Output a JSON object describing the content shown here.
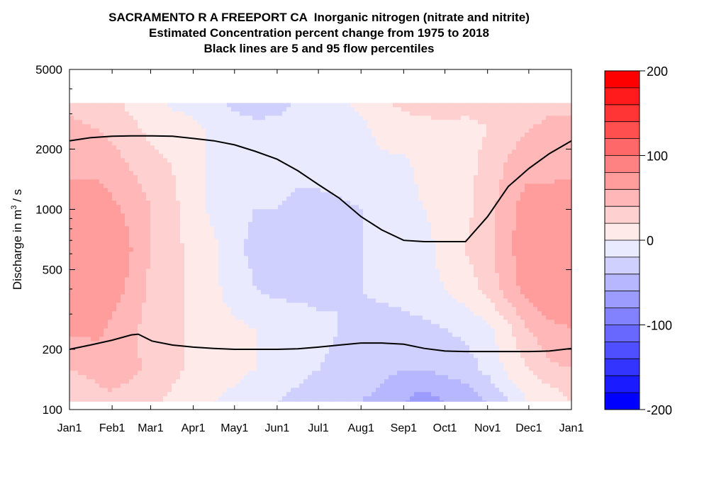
{
  "chart_data": {
    "type": "heatmap",
    "title_lines": [
      "SACRAMENTO R A FREEPORT CA  Inorganic nitrogen (nitrate and nitrite)",
      "Estimated Concentration percent change from 1975 to 2018",
      "Black lines are 5 and 95 flow percentiles"
    ],
    "ylabel": {
      "prefix": "Discharge in m",
      "sup": "3",
      "suffix": " / s"
    },
    "x_ticks": [
      "Jan1",
      "Feb1",
      "Mar1",
      "Apr1",
      "May1",
      "Jun1",
      "Jul1",
      "Aug1",
      "Sep1",
      "Oct1",
      "Nov1",
      "Dec1",
      "Jan1"
    ],
    "y_scale": "log",
    "ylim": [
      100,
      5000
    ],
    "y_ticks": [
      100,
      200,
      500,
      1000,
      2000,
      5000
    ],
    "y_tick_labels": [
      "100",
      "200",
      "500",
      "1000",
      "2000",
      "5000"
    ],
    "contour_data_range": [
      110,
      3400
    ],
    "colorbar": {
      "range": [
        -200,
        200
      ],
      "tick_values": [
        200,
        100,
        0,
        -100,
        -200
      ],
      "tick_labels": [
        "200",
        "100",
        "0",
        "-100",
        "-200"
      ],
      "colors": [
        "#ff0000",
        "#ff1b1b",
        "#ff3434",
        "#ff4f4f",
        "#ff6868",
        "#ff8282",
        "#ff9c9c",
        "#ffb7b7",
        "#ffd0d0",
        "#ffeaea",
        "#eaeaff",
        "#d0d0ff",
        "#b7b7ff",
        "#9c9cff",
        "#8282ff",
        "#6868ff",
        "#4f4fff",
        "#3434ff",
        "#1b1bff",
        "#0000ff"
      ]
    },
    "grid": false,
    "month_start_day": [
      0,
      31,
      59,
      90,
      120,
      151,
      181,
      212,
      243,
      273,
      304,
      334,
      365
    ],
    "series": [
      {
        "name": "95th percentile flow",
        "x_days": [
          0,
          15,
          31,
          45,
          60,
          75,
          90,
          105,
          120,
          135,
          151,
          166,
          181,
          196,
          212,
          227,
          243,
          258,
          273,
          288,
          304,
          319,
          334,
          349,
          365
        ],
        "values": [
          2200,
          2280,
          2320,
          2330,
          2330,
          2320,
          2260,
          2200,
          2100,
          1950,
          1780,
          1560,
          1330,
          1140,
          920,
          790,
          700,
          690,
          690,
          690,
          920,
          1300,
          1600,
          1900,
          2200
        ]
      },
      {
        "name": "5th percentile flow",
        "x_days": [
          0,
          15,
          31,
          45,
          50,
          60,
          75,
          90,
          105,
          120,
          135,
          151,
          166,
          181,
          196,
          212,
          227,
          243,
          258,
          273,
          288,
          304,
          319,
          334,
          349,
          365
        ],
        "values": [
          200,
          210,
          222,
          236,
          238,
          220,
          210,
          205,
          202,
          200,
          200,
          200,
          201,
          205,
          210,
          215,
          215,
          212,
          202,
          196,
          195,
          195,
          195,
          195,
          196,
          202
        ]
      }
    ],
    "fields": {
      "x_days": [
        0,
        20,
        31,
        45,
        59,
        75,
        90,
        105,
        120,
        135,
        151,
        166,
        181,
        196,
        212,
        227,
        243,
        258,
        273,
        288,
        304,
        319,
        334,
        349,
        365
      ],
      "log10_discharge_rows": [
        2.04,
        2.2,
        2.4,
        2.6,
        2.8,
        3.0,
        3.2,
        3.4,
        3.53
      ],
      "percent_change": [
        [
          20,
          35,
          35,
          30,
          25,
          15,
          8,
          0,
          -5,
          -15,
          -20,
          -25,
          -30,
          -35,
          -40,
          -45,
          -60,
          -70,
          -60,
          -55,
          -40,
          -20,
          0,
          5,
          20
        ],
        [
          40,
          45,
          50,
          45,
          35,
          25,
          15,
          8,
          5,
          0,
          -10,
          -15,
          -20,
          -25,
          -30,
          -35,
          -40,
          -40,
          -35,
          -30,
          -15,
          5,
          20,
          35,
          40
        ],
        [
          65,
          65,
          55,
          45,
          30,
          25,
          15,
          10,
          5,
          0,
          -5,
          -10,
          -15,
          -20,
          -25,
          -30,
          -30,
          -25,
          -20,
          -15,
          -5,
          15,
          40,
          55,
          60
        ],
        [
          70,
          75,
          70,
          55,
          35,
          25,
          15,
          5,
          -10,
          -20,
          -25,
          -25,
          -25,
          -20,
          -20,
          -15,
          -10,
          -5,
          0,
          10,
          25,
          50,
          70,
          75,
          75
        ],
        [
          75,
          80,
          75,
          60,
          40,
          25,
          15,
          5,
          -15,
          -25,
          -25,
          -25,
          -25,
          -25,
          -20,
          -15,
          -10,
          -5,
          5,
          20,
          35,
          55,
          75,
          80,
          80
        ],
        [
          75,
          75,
          65,
          55,
          40,
          25,
          10,
          -5,
          -15,
          -20,
          -20,
          -25,
          -25,
          -25,
          -20,
          -15,
          -5,
          0,
          5,
          15,
          30,
          55,
          70,
          70,
          75
        ],
        [
          55,
          55,
          50,
          40,
          30,
          20,
          5,
          -5,
          -10,
          -10,
          -10,
          -15,
          -15,
          -10,
          -5,
          -5,
          -5,
          5,
          10,
          15,
          25,
          45,
          55,
          55,
          55
        ],
        [
          45,
          40,
          35,
          25,
          15,
          10,
          5,
          -5,
          -10,
          -10,
          -10,
          -10,
          -10,
          -10,
          -5,
          5,
          10,
          10,
          15,
          15,
          20,
          30,
          40,
          45,
          45
        ],
        [
          35,
          30,
          25,
          15,
          10,
          -5,
          -5,
          -10,
          -25,
          -35,
          -30,
          -15,
          -10,
          -5,
          5,
          15,
          25,
          30,
          30,
          25,
          25,
          25,
          25,
          35,
          35
        ]
      ]
    }
  }
}
